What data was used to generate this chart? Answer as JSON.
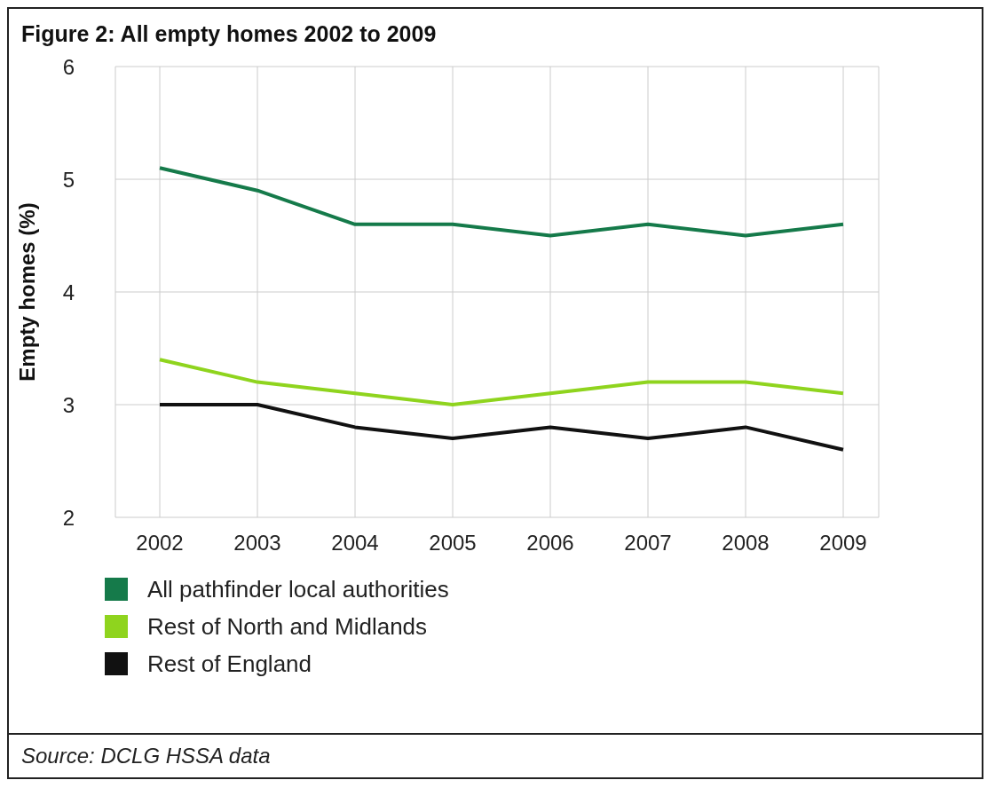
{
  "chart_data": {
    "type": "line",
    "title": "Figure 2:  All empty homes 2002 to 2009",
    "ylabel": "Empty homes (%)",
    "categories": [
      "2002",
      "2003",
      "2004",
      "2005",
      "2006",
      "2007",
      "2008",
      "2009"
    ],
    "series": [
      {
        "name": "All pathfinder local authorities",
        "color": "#157a4a",
        "values": [
          5.1,
          4.9,
          4.6,
          4.6,
          4.5,
          4.6,
          4.5,
          4.6
        ]
      },
      {
        "name": "Rest of North and Midlands",
        "color": "#8fd41e",
        "values": [
          3.4,
          3.2,
          3.1,
          3.0,
          3.1,
          3.2,
          3.2,
          3.1
        ]
      },
      {
        "name": "Rest of England",
        "color": "#111111",
        "values": [
          3.0,
          3.0,
          2.8,
          2.7,
          2.8,
          2.7,
          2.8,
          2.6
        ]
      }
    ],
    "ylim": [
      2,
      6
    ],
    "yticks": [
      2,
      3,
      4,
      5,
      6
    ],
    "grid": true,
    "legend": "bottom",
    "marker": "none",
    "line_style": "solid",
    "annotations": [
      "Source: DCLG HSSA data"
    ]
  }
}
